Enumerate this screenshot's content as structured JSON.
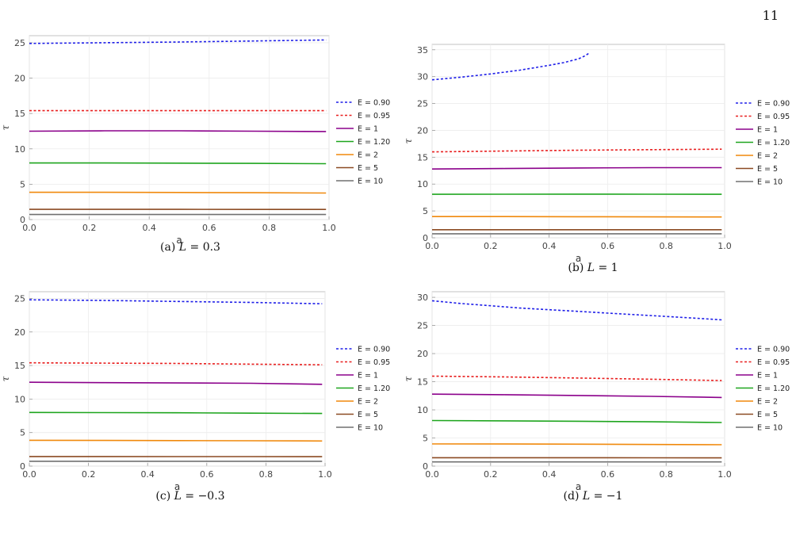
{
  "page_number": "11",
  "chart_data": [
    {
      "type": "line",
      "caption_prefix": "(a)",
      "caption_var": "L",
      "caption_value": "= 0.3",
      "xlabel": "a",
      "ylabel": "τ",
      "xlim": [
        0,
        1
      ],
      "ylim": [
        0,
        26
      ],
      "xticks": [
        "0.0",
        "0.2",
        "0.4",
        "0.6",
        "0.8",
        "1.0"
      ],
      "yticks": [
        0,
        5,
        10,
        15,
        20,
        25
      ],
      "grid": true,
      "legend_position": "right",
      "series": [
        {
          "name": "E = 0.90",
          "color": "#1f1fe8",
          "dashed": true,
          "x": [
            0,
            0.25,
            0.5,
            0.75,
            0.99
          ],
          "y": [
            24.9,
            25.0,
            25.1,
            25.25,
            25.4
          ]
        },
        {
          "name": "E = 0.95",
          "color": "#e81f1f",
          "dashed": true,
          "x": [
            0,
            0.25,
            0.5,
            0.75,
            0.99
          ],
          "y": [
            15.4,
            15.4,
            15.4,
            15.4,
            15.4
          ]
        },
        {
          "name": "E = 1",
          "color": "#8b008b",
          "dashed": false,
          "x": [
            0,
            0.25,
            0.5,
            0.75,
            0.99
          ],
          "y": [
            12.5,
            12.55,
            12.55,
            12.5,
            12.45
          ]
        },
        {
          "name": "E = 1.20",
          "color": "#1ea51e",
          "dashed": false,
          "x": [
            0,
            0.25,
            0.5,
            0.75,
            0.99
          ],
          "y": [
            8.0,
            8.0,
            7.98,
            7.95,
            7.9
          ]
        },
        {
          "name": "E = 2",
          "color": "#f0890c",
          "dashed": false,
          "x": [
            0,
            0.25,
            0.5,
            0.75,
            0.99
          ],
          "y": [
            3.85,
            3.85,
            3.83,
            3.8,
            3.75
          ]
        },
        {
          "name": "E = 5",
          "color": "#8b4a22",
          "dashed": false,
          "x": [
            0,
            0.25,
            0.5,
            0.75,
            0.99
          ],
          "y": [
            1.45,
            1.45,
            1.45,
            1.44,
            1.43
          ]
        },
        {
          "name": "E = 10",
          "color": "#707070",
          "dashed": false,
          "x": [
            0,
            0.25,
            0.5,
            0.75,
            0.99
          ],
          "y": [
            0.72,
            0.72,
            0.72,
            0.72,
            0.72
          ]
        }
      ]
    },
    {
      "type": "line",
      "caption_prefix": "(b)",
      "caption_var": "L",
      "caption_value": "= 1",
      "xlabel": "a",
      "ylabel": "τ",
      "xlim": [
        0,
        1
      ],
      "ylim": [
        0,
        36
      ],
      "xticks": [
        "0.0",
        "0.2",
        "0.4",
        "0.6",
        "0.8",
        "1.0"
      ],
      "yticks": [
        0,
        5,
        10,
        15,
        20,
        25,
        30,
        35
      ],
      "grid": true,
      "legend_position": "right",
      "series": [
        {
          "name": "E = 0.90",
          "color": "#1f1fe8",
          "dashed": true,
          "x": [
            0,
            0.1,
            0.2,
            0.3,
            0.4,
            0.45,
            0.5,
            0.52,
            0.535
          ],
          "y": [
            29.4,
            29.9,
            30.5,
            31.2,
            32.1,
            32.6,
            33.3,
            33.8,
            34.3
          ]
        },
        {
          "name": "E = 0.95",
          "color": "#e81f1f",
          "dashed": true,
          "x": [
            0,
            0.25,
            0.5,
            0.75,
            0.99
          ],
          "y": [
            16.0,
            16.15,
            16.3,
            16.4,
            16.5
          ]
        },
        {
          "name": "E = 1",
          "color": "#8b008b",
          "dashed": false,
          "x": [
            0,
            0.25,
            0.5,
            0.75,
            0.99
          ],
          "y": [
            12.8,
            12.9,
            13.0,
            13.05,
            13.05
          ]
        },
        {
          "name": "E = 1.20",
          "color": "#1ea51e",
          "dashed": false,
          "x": [
            0,
            0.25,
            0.5,
            0.75,
            0.99
          ],
          "y": [
            8.1,
            8.12,
            8.13,
            8.12,
            8.1
          ]
        },
        {
          "name": "E = 2",
          "color": "#f0890c",
          "dashed": false,
          "x": [
            0,
            0.25,
            0.5,
            0.75,
            0.99
          ],
          "y": [
            3.95,
            3.95,
            3.93,
            3.9,
            3.88
          ]
        },
        {
          "name": "E = 5",
          "color": "#8b4a22",
          "dashed": false,
          "x": [
            0,
            0.25,
            0.5,
            0.75,
            0.99
          ],
          "y": [
            1.5,
            1.5,
            1.5,
            1.5,
            1.5
          ]
        },
        {
          "name": "E = 10",
          "color": "#707070",
          "dashed": false,
          "x": [
            0,
            0.25,
            0.5,
            0.75,
            0.99
          ],
          "y": [
            0.75,
            0.75,
            0.75,
            0.75,
            0.75
          ]
        }
      ]
    },
    {
      "type": "line",
      "caption_prefix": "(c)",
      "caption_var": "L",
      "caption_value": "= −0.3",
      "xlabel": "a",
      "ylabel": "τ",
      "xlim": [
        0,
        1
      ],
      "ylim": [
        0,
        26
      ],
      "xticks": [
        "0.0",
        "0.2",
        "0.4",
        "0.6",
        "0.8",
        "1.0"
      ],
      "yticks": [
        0,
        5,
        10,
        15,
        20,
        25
      ],
      "grid": true,
      "legend_position": "right",
      "series": [
        {
          "name": "E = 0.90",
          "color": "#1f1fe8",
          "dashed": true,
          "x": [
            0,
            0.25,
            0.5,
            0.75,
            0.99
          ],
          "y": [
            24.8,
            24.7,
            24.55,
            24.4,
            24.2
          ]
        },
        {
          "name": "E = 0.95",
          "color": "#e81f1f",
          "dashed": true,
          "x": [
            0,
            0.25,
            0.5,
            0.75,
            0.99
          ],
          "y": [
            15.4,
            15.35,
            15.3,
            15.2,
            15.1
          ]
        },
        {
          "name": "E = 1",
          "color": "#8b008b",
          "dashed": false,
          "x": [
            0,
            0.25,
            0.5,
            0.75,
            0.99
          ],
          "y": [
            12.5,
            12.45,
            12.4,
            12.35,
            12.2
          ]
        },
        {
          "name": "E = 1.20",
          "color": "#1ea51e",
          "dashed": false,
          "x": [
            0,
            0.25,
            0.5,
            0.75,
            0.99
          ],
          "y": [
            8.0,
            7.98,
            7.95,
            7.9,
            7.85
          ]
        },
        {
          "name": "E = 2",
          "color": "#f0890c",
          "dashed": false,
          "x": [
            0,
            0.25,
            0.5,
            0.75,
            0.99
          ],
          "y": [
            3.85,
            3.83,
            3.8,
            3.78,
            3.75
          ]
        },
        {
          "name": "E = 5",
          "color": "#8b4a22",
          "dashed": false,
          "x": [
            0,
            0.25,
            0.5,
            0.75,
            0.99
          ],
          "y": [
            1.43,
            1.43,
            1.42,
            1.42,
            1.41
          ]
        },
        {
          "name": "E = 10",
          "color": "#707070",
          "dashed": false,
          "x": [
            0,
            0.25,
            0.5,
            0.75,
            0.99
          ],
          "y": [
            0.72,
            0.72,
            0.72,
            0.72,
            0.72
          ]
        }
      ]
    },
    {
      "type": "line",
      "caption_prefix": "(d)",
      "caption_var": "L",
      "caption_value": "= −1",
      "xlabel": "a",
      "ylabel": "τ",
      "xlim": [
        0,
        1
      ],
      "ylim": [
        0,
        31
      ],
      "xticks": [
        "0.0",
        "0.2",
        "0.4",
        "0.6",
        "0.8",
        "1.0"
      ],
      "yticks": [
        0,
        5,
        10,
        15,
        20,
        25,
        30
      ],
      "grid": true,
      "legend_position": "right",
      "series": [
        {
          "name": "E = 0.90",
          "color": "#1f1fe8",
          "dashed": true,
          "x": [
            0,
            0.1,
            0.2,
            0.3,
            0.4,
            0.5,
            0.6,
            0.7,
            0.8,
            0.9,
            0.99
          ],
          "y": [
            29.4,
            28.9,
            28.5,
            28.1,
            27.8,
            27.5,
            27.2,
            26.9,
            26.6,
            26.3,
            26.0
          ]
        },
        {
          "name": "E = 0.95",
          "color": "#e81f1f",
          "dashed": true,
          "x": [
            0,
            0.25,
            0.5,
            0.75,
            0.99
          ],
          "y": [
            16.0,
            15.85,
            15.65,
            15.45,
            15.2
          ]
        },
        {
          "name": "E = 1",
          "color": "#8b008b",
          "dashed": false,
          "x": [
            0,
            0.25,
            0.5,
            0.75,
            0.99
          ],
          "y": [
            12.8,
            12.7,
            12.55,
            12.4,
            12.2
          ]
        },
        {
          "name": "E = 1.20",
          "color": "#1ea51e",
          "dashed": false,
          "x": [
            0,
            0.25,
            0.5,
            0.75,
            0.99
          ],
          "y": [
            8.1,
            8.05,
            7.98,
            7.88,
            7.75
          ]
        },
        {
          "name": "E = 2",
          "color": "#f0890c",
          "dashed": false,
          "x": [
            0,
            0.25,
            0.5,
            0.75,
            0.99
          ],
          "y": [
            3.95,
            3.93,
            3.9,
            3.85,
            3.8
          ]
        },
        {
          "name": "E = 5",
          "color": "#8b4a22",
          "dashed": false,
          "x": [
            0,
            0.25,
            0.5,
            0.75,
            0.99
          ],
          "y": [
            1.5,
            1.5,
            1.49,
            1.48,
            1.47
          ]
        },
        {
          "name": "E = 10",
          "color": "#707070",
          "dashed": false,
          "x": [
            0,
            0.25,
            0.5,
            0.75,
            0.99
          ],
          "y": [
            0.75,
            0.75,
            0.75,
            0.75,
            0.75
          ]
        }
      ]
    }
  ]
}
